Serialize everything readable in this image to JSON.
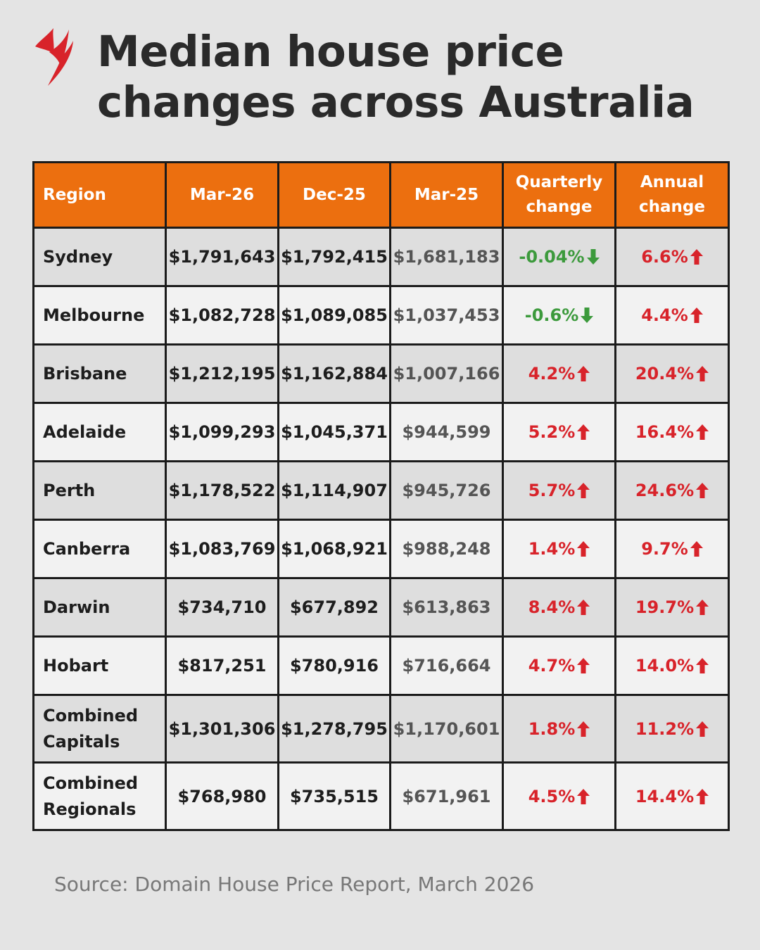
{
  "title": {
    "line1": "Median house price",
    "line2": "changes across Australia"
  },
  "columns": [
    "Region",
    "Mar-26",
    "Dec-25",
    "Mar-25",
    "Quarterly change",
    "Annual change"
  ],
  "rows": [
    {
      "region": "Sydney",
      "mar26": "$1,791,643",
      "dec25": "$1,792,415",
      "mar25": "$1,681,183",
      "quarterly": "-0.04%",
      "quarterly_dir": "down",
      "annual": "6.6%",
      "annual_dir": "up"
    },
    {
      "region": "Melbourne",
      "mar26": "$1,082,728",
      "dec25": "$1,089,085",
      "mar25": "$1,037,453",
      "quarterly": "-0.6%",
      "quarterly_dir": "down",
      "annual": "4.4%",
      "annual_dir": "up"
    },
    {
      "region": "Brisbane",
      "mar26": "$1,212,195",
      "dec25": "$1,162,884",
      "mar25": "$1,007,166",
      "quarterly": "4.2%",
      "quarterly_dir": "up",
      "annual": "20.4%",
      "annual_dir": "up"
    },
    {
      "region": "Adelaide",
      "mar26": "$1,099,293",
      "dec25": "$1,045,371",
      "mar25": "$944,599",
      "quarterly": "5.2%",
      "quarterly_dir": "up",
      "annual": "16.4%",
      "annual_dir": "up"
    },
    {
      "region": "Perth",
      "mar26": "$1,178,522",
      "dec25": "$1,114,907",
      "mar25": "$945,726",
      "quarterly": "5.7%",
      "quarterly_dir": "up",
      "annual": "24.6%",
      "annual_dir": "up"
    },
    {
      "region": "Canberra",
      "mar26": "$1,083,769",
      "dec25": "$1,068,921",
      "mar25": "$988,248",
      "quarterly": "1.4%",
      "quarterly_dir": "up",
      "annual": "9.7%",
      "annual_dir": "up"
    },
    {
      "region": "Darwin",
      "mar26": "$734,710",
      "dec25": "$677,892",
      "mar25": "$613,863",
      "quarterly": "8.4%",
      "quarterly_dir": "up",
      "annual": "19.7%",
      "annual_dir": "up"
    },
    {
      "region": "Hobart",
      "mar26": "$817,251",
      "dec25": "$780,916",
      "mar25": "$716,664",
      "quarterly": "4.7%",
      "quarterly_dir": "up",
      "annual": "14.0%",
      "annual_dir": "up"
    },
    {
      "region": "Combined Capitals",
      "mar26": "$1,301,306",
      "dec25": "$1,278,795",
      "mar25": "$1,170,601",
      "quarterly": "1.8%",
      "quarterly_dir": "up",
      "annual": "11.2%",
      "annual_dir": "up"
    },
    {
      "region": "Combined Regionals",
      "mar26": "$768,980",
      "dec25": "$735,515",
      "mar25": "$671,961",
      "quarterly": "4.5%",
      "quarterly_dir": "up",
      "annual": "14.4%",
      "annual_dir": "up"
    }
  ],
  "source": "Source: Domain House Price Report, March 2026",
  "colors": {
    "header": "#ec6f0f",
    "up": "#d8232a",
    "down": "#3c9a3c",
    "title": "#2a2a2a",
    "logo": "#d8232a"
  },
  "icons": {
    "logo": "sbs-logo-icon",
    "up": "arrow-up-icon",
    "down": "arrow-down-icon"
  },
  "chart_data": {
    "type": "table",
    "title": "Median house price changes across Australia",
    "columns": [
      "Region",
      "Mar-26",
      "Dec-25",
      "Mar-25",
      "Quarterly change",
      "Annual change"
    ],
    "regions": [
      "Sydney",
      "Melbourne",
      "Brisbane",
      "Adelaide",
      "Perth",
      "Canberra",
      "Darwin",
      "Hobart",
      "Combined Capitals",
      "Combined Regionals"
    ],
    "series": [
      {
        "name": "Mar-26",
        "values": [
          1791643,
          1082728,
          1212195,
          1099293,
          1178522,
          1083769,
          734710,
          817251,
          1301306,
          768980
        ]
      },
      {
        "name": "Dec-25",
        "values": [
          1792415,
          1089085,
          1162884,
          1045371,
          1114907,
          1068921,
          677892,
          780916,
          1278795,
          735515
        ]
      },
      {
        "name": "Mar-25",
        "values": [
          1681183,
          1037453,
          1007166,
          944599,
          945726,
          988248,
          613863,
          716664,
          1170601,
          671961
        ]
      },
      {
        "name": "Quarterly change",
        "values": [
          -0.04,
          -0.6,
          4.2,
          5.2,
          5.7,
          1.4,
          8.4,
          4.7,
          1.8,
          4.5
        ]
      },
      {
        "name": "Annual change",
        "values": [
          6.6,
          4.4,
          20.4,
          16.4,
          24.6,
          9.7,
          19.7,
          14.0,
          11.2,
          14.4
        ]
      }
    ]
  }
}
